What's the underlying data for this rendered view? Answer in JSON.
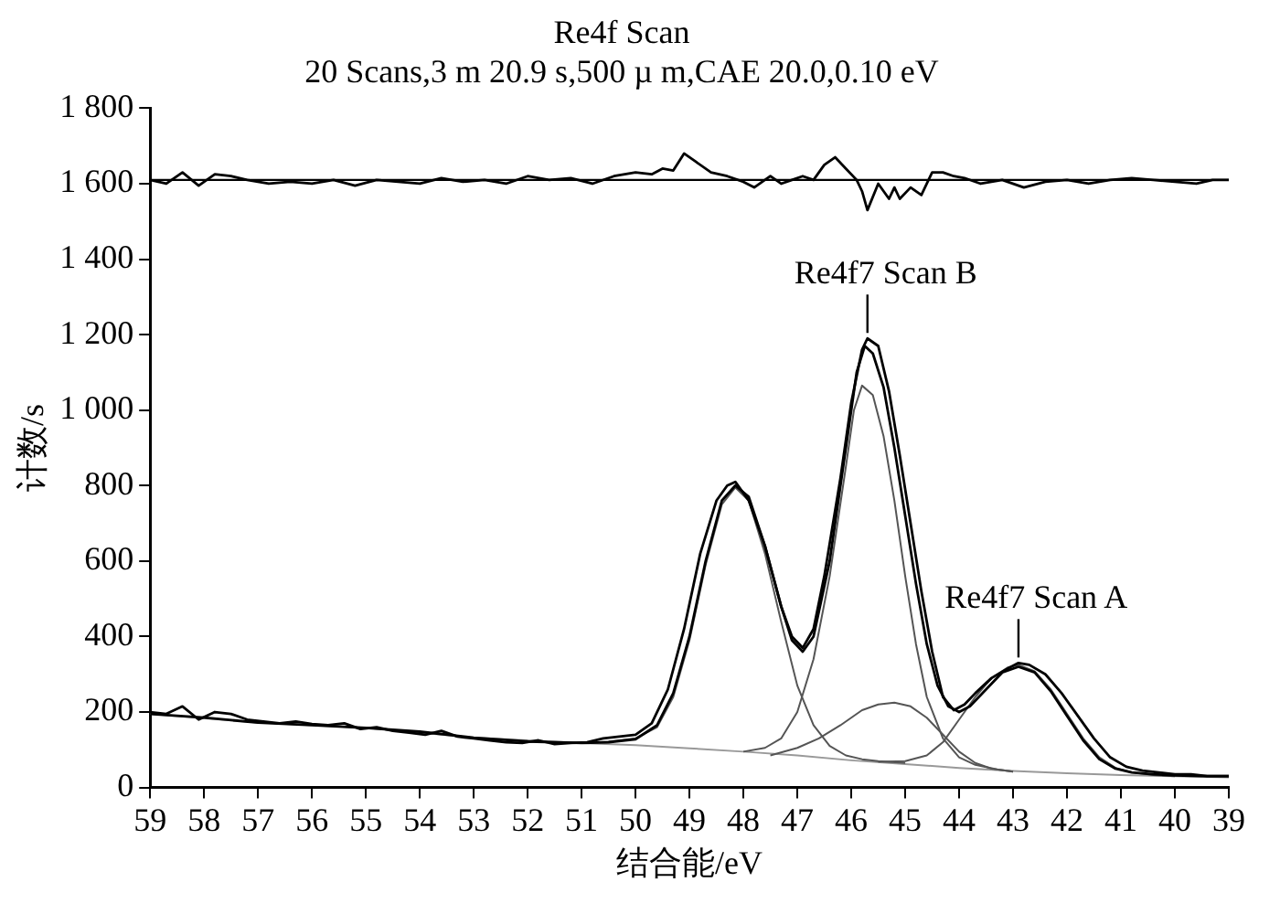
{
  "chart_data": {
    "type": "line",
    "title": "Re4f Scan",
    "subtitle": "20 Scans,3 m 20.9 s,500 µ m,CAE 20.0,0.10 eV",
    "xlabel": "结合能/eV",
    "ylabel": "计数/s",
    "xlim": [
      59,
      39
    ],
    "xticks": [
      59,
      58,
      57,
      56,
      55,
      54,
      53,
      52,
      51,
      50,
      49,
      48,
      47,
      46,
      45,
      44,
      43,
      42,
      41,
      40,
      39
    ],
    "ylim": [
      0,
      1800
    ],
    "yticks": [
      0,
      {
        "value": 200,
        "label": "200"
      },
      {
        "value": 400,
        "label": "400"
      },
      {
        "value": 600,
        "label": "600"
      },
      {
        "value": 800,
        "label": "800"
      },
      {
        "value": 1000,
        "label": "1 000"
      },
      {
        "value": 1200,
        "label": "1 200"
      },
      {
        "value": 1400,
        "label": "1 400"
      },
      {
        "value": 1600,
        "label": "1 600"
      },
      {
        "value": 1800,
        "label": "1 800"
      }
    ],
    "grid": false,
    "legend": false,
    "marker": "none",
    "line_style": "solid",
    "ref_lines": [
      {
        "axis": "y",
        "value": 1610,
        "color": "#000000"
      }
    ],
    "annotations": [
      {
        "text": "Re4f7 Scan B",
        "x": 45.7,
        "y": 1190
      },
      {
        "text": "Re4f7 Scan A",
        "x": 42.9,
        "y": 330
      }
    ],
    "series": [
      {
        "color": "#000000",
        "x": [
          59,
          58.7,
          58.4,
          58.1,
          57.8,
          57.5,
          57.2,
          56.9,
          56.6,
          56.3,
          56,
          55.7,
          55.4,
          55.1,
          54.8,
          54.5,
          54.2,
          53.9,
          53.6,
          53.3,
          53,
          52.7,
          52.4,
          52.1,
          51.8,
          51.5,
          51.2,
          50.9,
          50.6,
          50.3,
          50,
          49.7,
          49.4,
          49.1,
          48.8,
          48.5,
          48.3,
          48.15,
          47.9,
          47.6,
          47.3,
          47.1,
          46.9,
          46.7,
          46.5,
          46.2,
          46,
          45.8,
          45.7,
          45.5,
          45.3,
          45.1,
          44.9,
          44.7,
          44.5,
          44.3,
          44.1,
          43.9,
          43.7,
          43.4,
          43.1,
          42.9,
          42.7,
          42.4,
          42.1,
          41.8,
          41.5,
          41.2,
          40.9,
          40.6,
          40.3,
          40,
          39.7,
          39.4,
          39
        ],
        "values": [
          200,
          195,
          215,
          180,
          200,
          195,
          180,
          175,
          170,
          175,
          168,
          165,
          170,
          155,
          160,
          150,
          145,
          140,
          150,
          135,
          130,
          125,
          120,
          118,
          125,
          115,
          118,
          120,
          130,
          135,
          140,
          170,
          260,
          420,
          620,
          760,
          800,
          810,
          760,
          640,
          480,
          400,
          370,
          420,
          560,
          820,
          1020,
          1160,
          1190,
          1170,
          1050,
          880,
          700,
          520,
          360,
          240,
          205,
          220,
          250,
          290,
          315,
          330,
          325,
          300,
          250,
          190,
          130,
          80,
          55,
          45,
          40,
          35,
          35,
          30,
          30
        ]
      },
      {
        "color": "#000000",
        "x": [
          59,
          58,
          57,
          56,
          55,
          54,
          53,
          52,
          51,
          50.5,
          50,
          49.6,
          49.3,
          49,
          48.7,
          48.4,
          48.15,
          47.9,
          47.6,
          47.3,
          47.1,
          46.9,
          46.7,
          46.4,
          46.1,
          45.9,
          45.75,
          45.6,
          45.4,
          45.2,
          45,
          44.8,
          44.6,
          44.4,
          44.2,
          44,
          43.8,
          43.5,
          43.2,
          42.9,
          42.6,
          42.3,
          42,
          41.7,
          41.4,
          41.1,
          40.8,
          40.4,
          40,
          39.5,
          39
        ],
        "values": [
          195,
          185,
          172,
          165,
          158,
          148,
          132,
          122,
          118,
          120,
          128,
          165,
          250,
          400,
          600,
          760,
          800,
          770,
          640,
          480,
          390,
          360,
          400,
          600,
          900,
          1100,
          1170,
          1150,
          1060,
          900,
          720,
          540,
          380,
          270,
          215,
          200,
          215,
          260,
          305,
          320,
          305,
          255,
          190,
          125,
          75,
          50,
          40,
          35,
          32,
          30,
          30
        ]
      },
      {
        "color": "#555555",
        "x": [
          51,
          50.5,
          50,
          49.6,
          49.3,
          49,
          48.7,
          48.4,
          48.15,
          47.9,
          47.6,
          47.3,
          47,
          46.7,
          46.4,
          46.1,
          45.8,
          45.5,
          45
        ],
        "values": [
          118,
          122,
          130,
          160,
          240,
          390,
          590,
          750,
          795,
          760,
          620,
          440,
          270,
          165,
          110,
          85,
          75,
          70,
          65
        ]
      },
      {
        "color": "#555555",
        "x": [
          48,
          47.6,
          47.3,
          47,
          46.7,
          46.4,
          46.1,
          45.95,
          45.8,
          45.6,
          45.4,
          45.2,
          45,
          44.8,
          44.6,
          44.3,
          44,
          43.7,
          43.3,
          43
        ],
        "values": [
          95,
          105,
          130,
          200,
          340,
          560,
          850,
          1000,
          1065,
          1040,
          930,
          760,
          560,
          380,
          240,
          130,
          80,
          60,
          48,
          42
        ]
      },
      {
        "color": "#555555",
        "x": [
          47.5,
          47,
          46.6,
          46.2,
          45.8,
          45.5,
          45.2,
          44.9,
          44.6,
          44.3,
          44,
          43.7,
          43.4,
          43
        ],
        "values": [
          85,
          105,
          130,
          165,
          205,
          220,
          225,
          215,
          185,
          140,
          95,
          65,
          50,
          42
        ]
      },
      {
        "color": "#555555",
        "x": [
          45.5,
          45,
          44.6,
          44.3,
          44,
          43.7,
          43.4,
          43.1,
          42.9,
          42.6,
          42.3,
          42,
          41.7,
          41.4,
          41.1,
          40.8,
          40.4,
          40
        ],
        "values": [
          68,
          70,
          85,
          120,
          180,
          240,
          290,
          318,
          325,
          308,
          260,
          195,
          130,
          80,
          52,
          40,
          33,
          30
        ]
      },
      {
        "color": "#999999",
        "x": [
          59,
          57,
          55,
          53,
          51,
          50,
          49,
          48,
          47,
          46,
          45,
          44,
          43,
          42,
          41,
          40,
          39
        ],
        "values": [
          195,
          172,
          158,
          132,
          118,
          112,
          104,
          95,
          85,
          72,
          62,
          52,
          44,
          38,
          33,
          30,
          27
        ]
      },
      {
        "color": "#000000",
        "x": [
          59,
          58.7,
          58.4,
          58.1,
          57.8,
          57.5,
          57.2,
          56.8,
          56.4,
          56,
          55.6,
          55.2,
          54.8,
          54.4,
          54,
          53.6,
          53.2,
          52.8,
          52.4,
          52,
          51.6,
          51.2,
          50.8,
          50.4,
          50,
          49.7,
          49.5,
          49.3,
          49.1,
          48.9,
          48.6,
          48.3,
          48,
          47.8,
          47.5,
          47.3,
          47.1,
          46.9,
          46.7,
          46.5,
          46.3,
          46.1,
          45.9,
          45.8,
          45.7,
          45.5,
          45.3,
          45.2,
          45.1,
          44.9,
          44.7,
          44.5,
          44.3,
          44.1,
          43.9,
          43.6,
          43.2,
          42.8,
          42.4,
          42,
          41.6,
          41.2,
          40.8,
          40.4,
          40,
          39.6,
          39.3,
          39
        ],
        "values": [
          1610,
          1600,
          1630,
          1595,
          1625,
          1620,
          1610,
          1600,
          1605,
          1600,
          1610,
          1595,
          1610,
          1605,
          1600,
          1615,
          1605,
          1610,
          1600,
          1620,
          1610,
          1615,
          1600,
          1620,
          1630,
          1625,
          1640,
          1635,
          1680,
          1660,
          1630,
          1620,
          1605,
          1590,
          1620,
          1600,
          1610,
          1620,
          1610,
          1650,
          1670,
          1640,
          1610,
          1580,
          1530,
          1600,
          1560,
          1590,
          1560,
          1590,
          1570,
          1630,
          1630,
          1620,
          1615,
          1600,
          1610,
          1590,
          1605,
          1610,
          1600,
          1610,
          1615,
          1610,
          1605,
          1600,
          1610,
          1610
        ]
      }
    ]
  }
}
